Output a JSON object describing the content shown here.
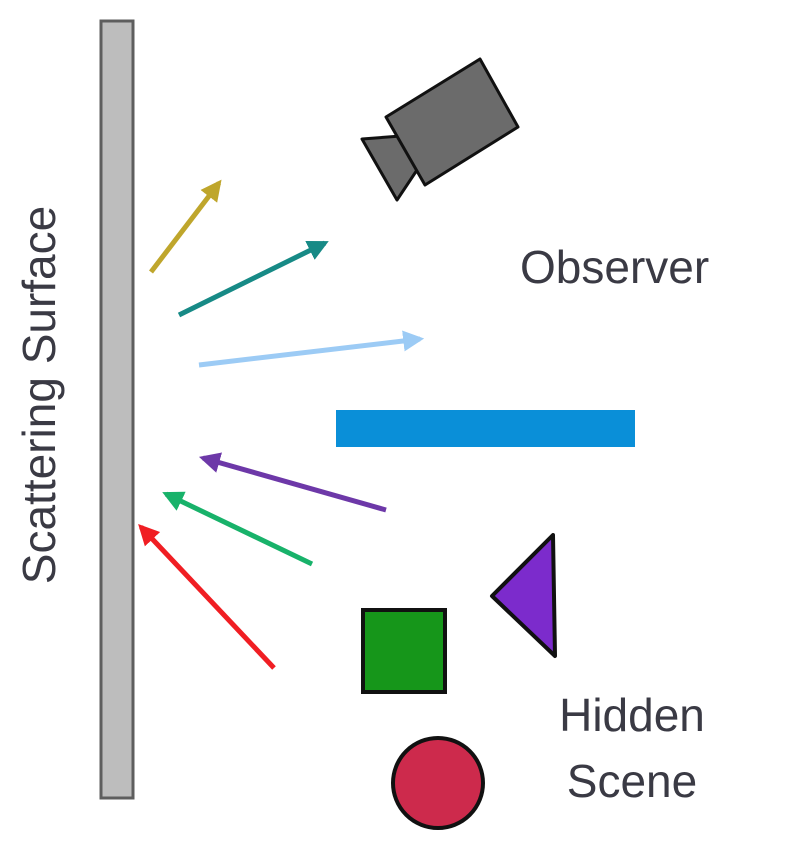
{
  "labels": {
    "surface": "Scattering Surface",
    "observer": "Observer",
    "hidden_line1": "Hidden",
    "hidden_line2": "Scene"
  },
  "colors": {
    "surface_fill": "#bdbdbd",
    "surface_stroke": "#5e5e5e",
    "camera_fill": "#6b6b6b",
    "camera_stroke": "#111111",
    "occluder": "#0a8fd8",
    "square": "#16961a",
    "triangle": "#7c2bcc",
    "circle": "#cd2a4c",
    "text": "#3a3a44"
  },
  "arrows": [
    {
      "name": "outgoing-arrow-yellow",
      "color": "#bfa62c",
      "direction": "from-surface"
    },
    {
      "name": "outgoing-arrow-teal",
      "color": "#178a86",
      "direction": "from-surface"
    },
    {
      "name": "outgoing-arrow-lightblue",
      "color": "#9ccbf5",
      "direction": "from-surface"
    },
    {
      "name": "incoming-arrow-purple",
      "color": "#6d38a8",
      "direction": "to-surface"
    },
    {
      "name": "incoming-arrow-green",
      "color": "#18b26a",
      "direction": "to-surface"
    },
    {
      "name": "incoming-arrow-red",
      "color": "#f01e23",
      "direction": "to-surface"
    }
  ]
}
